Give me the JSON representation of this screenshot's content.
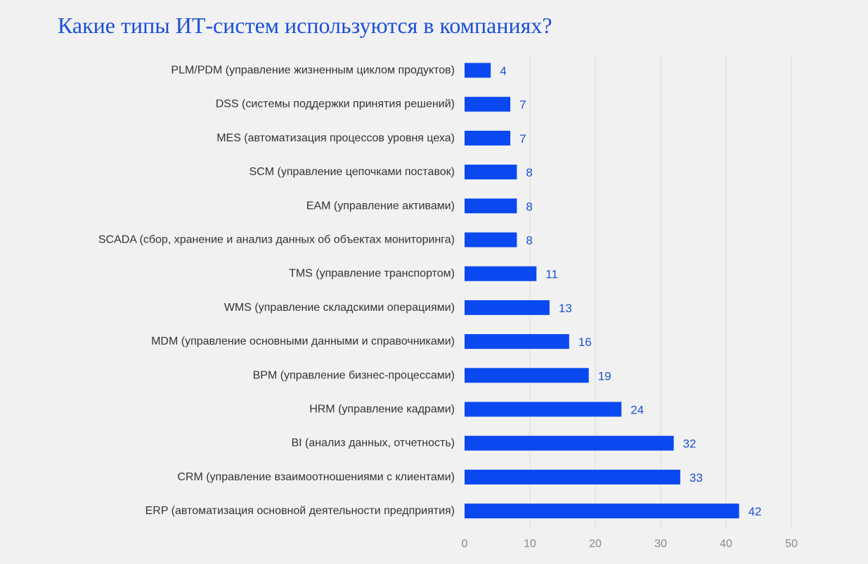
{
  "chart_data": {
    "type": "bar",
    "orientation": "horizontal",
    "title": "Какие типы ИТ-систем используются в компаниях?",
    "xlabel": "",
    "ylabel": "",
    "xlim": [
      0,
      50
    ],
    "x_ticks": [
      0,
      10,
      20,
      30,
      40,
      50
    ],
    "grid": true,
    "legend": "none",
    "bar_color": "#0a49f0",
    "label_color": "#1a4fd6",
    "categories": [
      "PLM/PDM (управление жизненным циклом продуктов)",
      "DSS (системы поддержки принятия решений)",
      "MES (автоматизация процессов уровня цеха)",
      "SCM (управление цепочками поставок)",
      "EAM (управление активами)",
      "SCADA (сбор, хранение и анализ данных об объектах мониторинга)",
      "TMS (управление транспортом)",
      "WMS (управление складскими операциями)",
      "MDM (управление основными данными и справочниками)",
      "BPM (управление бизнес-процессами)",
      "HRM (управление кадрами)",
      "BI (анализ данных, отчетность)",
      "CRM (управление взаимоотношениями с клиентами)",
      "ERP (автоматизация основной деятельности предприятия)"
    ],
    "values": [
      4,
      7,
      7,
      8,
      8,
      8,
      11,
      13,
      16,
      19,
      24,
      32,
      33,
      42
    ]
  }
}
